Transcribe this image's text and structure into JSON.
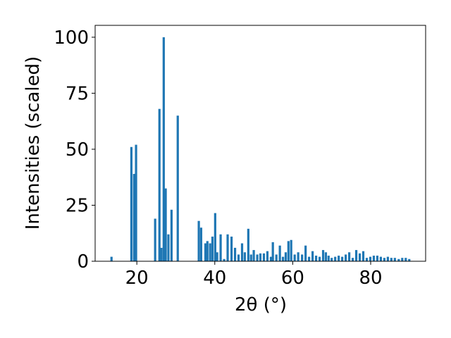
{
  "chart_data": {
    "type": "bar",
    "x_label": "2θ (°)",
    "y_label": "Intensities (scaled)",
    "color": "#1f77b4",
    "x": [
      13.5,
      18.6,
      19.3,
      19.8,
      24.7,
      25.8,
      26.3,
      26.9,
      27.4,
      28.1,
      28.9,
      30.5,
      35.9,
      36.5,
      37.6,
      38.1,
      38.8,
      39.4,
      40.1,
      40.6,
      41.5,
      42.4,
      43.3,
      44.3,
      45.2,
      46.1,
      47.0,
      47.7,
      48.6,
      49.3,
      50.0,
      50.9,
      51.7,
      52.6,
      53.5,
      54.4,
      54.9,
      55.8,
      56.7,
      57.5,
      58.2,
      58.9,
      59.6,
      60.5,
      61.4,
      62.4,
      63.3,
      64.2,
      65.1,
      66.0,
      66.9,
      67.8,
      68.5,
      69.2,
      70.0,
      70.9,
      71.8,
      72.7,
      73.6,
      74.5,
      75.4,
      76.3,
      77.2,
      78.1,
      79.0,
      79.9,
      80.8,
      81.7,
      82.6,
      83.5,
      84.4,
      85.3,
      86.2,
      87.2,
      88.1,
      89.0,
      89.9
    ],
    "values": [
      2,
      51,
      39,
      52,
      19,
      68,
      6,
      100,
      32.5,
      12,
      23,
      65,
      18,
      15,
      8,
      9,
      8,
      11,
      21.5,
      4,
      12,
      1,
      12,
      11,
      6,
      3,
      8,
      4,
      14.5,
      3,
      5,
      3,
      3.5,
      3.5,
      4.5,
      2,
      8.5,
      3,
      7,
      2,
      4,
      9,
      9.5,
      3,
      4,
      3,
      7,
      2,
      4.5,
      2.5,
      2,
      5,
      4,
      2.5,
      1.5,
      2,
      2.5,
      2,
      3,
      4,
      1.5,
      5,
      3.5,
      4.5,
      1.5,
      2,
      2.5,
      2.5,
      2,
      1.5,
      2,
      1.5,
      1.5,
      1,
      1.5,
      1.5,
      1
    ],
    "xlim": [
      9.3,
      94.1
    ],
    "ylim": [
      0,
      105.3
    ],
    "xticks": [
      20,
      40,
      60,
      80
    ],
    "yticks": [
      0,
      25,
      50,
      75,
      100
    ]
  }
}
